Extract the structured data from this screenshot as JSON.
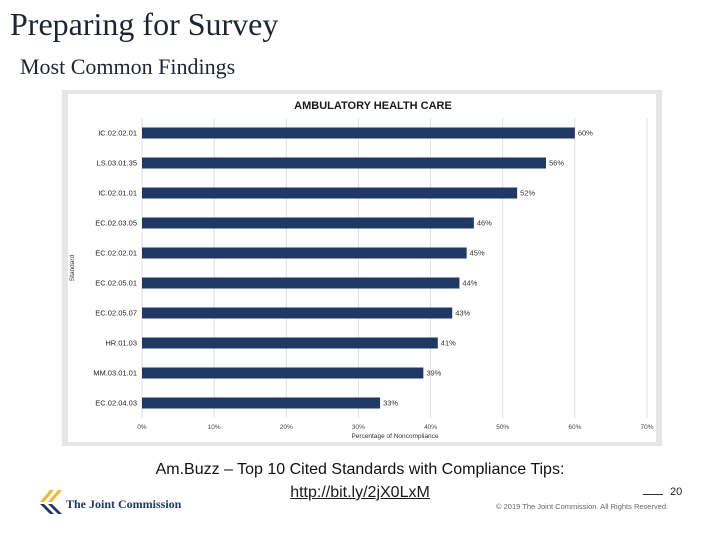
{
  "slide": {
    "title": "Preparing for Survey",
    "subtitle": "Most Common Findings"
  },
  "chart_data": {
    "type": "bar",
    "orientation": "horizontal",
    "title": "AMBULATORY HEALTH CARE",
    "xlabel": "Percentage of Noncompliance",
    "ylabel": "Standard",
    "categories": [
      "IC.02.02.01",
      "LS.03.01.35",
      "IC.02.01.01",
      "EC.02.03.05",
      "EC.02.02.01",
      "EC.02.05.01",
      "EC.02.05.07",
      "HR.01.03",
      "MM.03.01.01",
      "EC.02.04.03"
    ],
    "values": [
      60,
      56,
      52,
      46,
      45,
      44,
      43,
      41,
      39,
      33
    ],
    "data_labels": [
      "60%",
      "56%",
      "52%",
      "46%",
      "45%",
      "44%",
      "43%",
      "41%",
      "39%",
      "33%"
    ],
    "xlim": [
      0,
      70
    ],
    "xticks": [
      0,
      10,
      20,
      30,
      40,
      50,
      60,
      70
    ],
    "xtick_labels": [
      "0%",
      "10%",
      "20%",
      "30%",
      "40%",
      "50%",
      "60%",
      "70%"
    ],
    "grid": true,
    "bar_color": "#1f3864"
  },
  "source": {
    "text": "Am.Buzz – Top 10 Cited Standards with Compliance Tips:",
    "link": "http://bit.ly/2jX0LxM"
  },
  "footer": {
    "logo_text": "The Joint Commission",
    "page_number": "20",
    "copyright": "© 2019 The Joint Commission. All Rights Reserved."
  }
}
